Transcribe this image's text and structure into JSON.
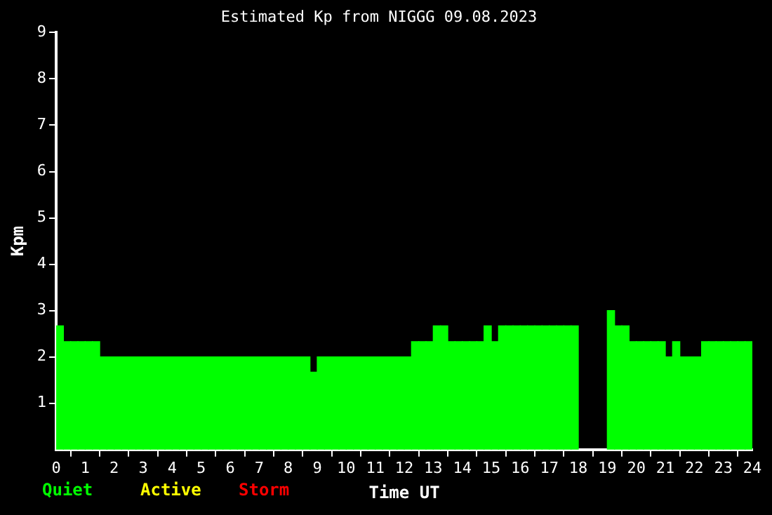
{
  "chart_data": {
    "type": "histogram",
    "title": "Estimated Kp from NIGGG 09.08.2023",
    "xlabel": "Time UT",
    "ylabel": "Kpm",
    "color": "#00ff00",
    "bins": [
      0,
      0.25,
      0.5,
      0.75,
      1,
      1.25,
      1.5,
      1.75,
      2,
      2.25,
      2.5,
      2.75,
      3,
      3.25,
      3.5,
      3.75,
      4,
      4.25,
      4.5,
      4.75,
      5,
      5.25,
      5.5,
      5.75,
      6,
      6.25,
      6.5,
      6.75,
      7,
      7.25,
      7.5,
      7.75,
      8,
      8.25,
      8.5,
      8.75,
      9,
      9.25,
      9.5,
      9.75,
      10,
      10.25,
      10.5,
      10.75,
      11,
      11.25,
      11.5,
      11.75,
      12,
      12.25,
      12.5,
      12.75,
      13,
      13.25,
      13.5,
      13.75,
      14,
      14.25,
      14.5,
      14.75,
      15,
      15.25,
      15.5,
      15.75,
      16,
      16.25,
      16.5,
      16.75,
      17,
      17.25,
      17.5,
      17.75,
      18,
      18.25,
      18.5,
      18.75,
      19,
      19.25,
      19.5,
      19.75,
      20,
      20.25,
      20.5,
      20.75,
      21,
      21.25,
      21.5,
      21.75,
      22,
      22.25,
      22.5,
      22.75,
      23,
      23.25,
      23.5,
      23.75,
      24
    ],
    "values": [
      2.67,
      2.33,
      2.33,
      2.33,
      2.33,
      2.33,
      2,
      2,
      2,
      2,
      2,
      2,
      2,
      2,
      2,
      2,
      2,
      2,
      2,
      2,
      2,
      2,
      2,
      2,
      2,
      2,
      2,
      2,
      2,
      2,
      2,
      2,
      2,
      2,
      2,
      1.67,
      2,
      2,
      2,
      2,
      2,
      2,
      2,
      2,
      2,
      2,
      2,
      2,
      2,
      2.33,
      2.33,
      2.33,
      2.67,
      2.67,
      2.33,
      2.33,
      2.33,
      2.33,
      2.33,
      2.67,
      2.33,
      2.67,
      2.67,
      2.67,
      2.67,
      2.67,
      2.67,
      2.67,
      2.67,
      2.67,
      2.67,
      2.67,
      null,
      null,
      null,
      null,
      3,
      2.67,
      2.67,
      2.33,
      2.33,
      2.33,
      2.33,
      2.33,
      2,
      2.33,
      2,
      2,
      2,
      2.33,
      2.33,
      2.33,
      2.33,
      2.33,
      2.33,
      2.33
    ],
    "xlim": [
      0,
      24
    ],
    "xticks": [
      0,
      1,
      2,
      3,
      4,
      5,
      6,
      7,
      8,
      9,
      10,
      11,
      12,
      13,
      14,
      15,
      16,
      17,
      18,
      19,
      20,
      21,
      22,
      23,
      24
    ],
    "ylim": [
      0,
      9
    ],
    "yticks": [
      1,
      2,
      3,
      4,
      5,
      6,
      7,
      8,
      9
    ],
    "annotations": [
      "Quiet",
      "Active",
      "Storm"
    ],
    "grid": false,
    "legend": false
  }
}
